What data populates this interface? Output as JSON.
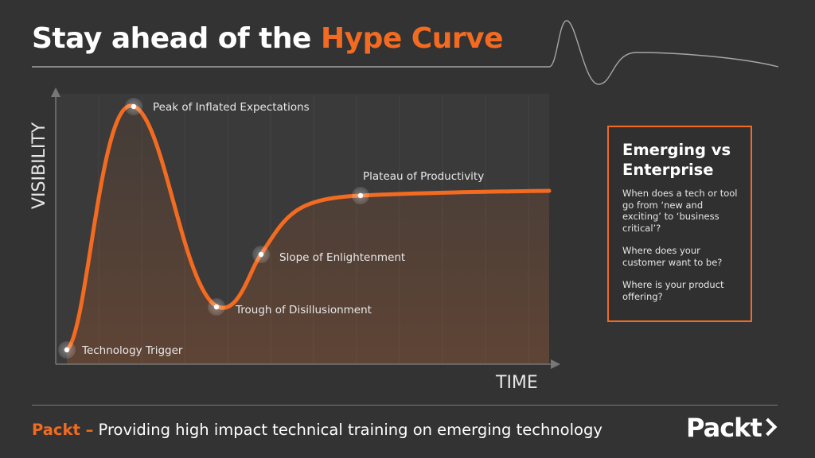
{
  "header": {
    "title_prefix": "Stay ahead of the ",
    "title_accent": "Hype Curve"
  },
  "diagram": {
    "y_axis_label": "VISIBILITY",
    "x_axis_label": "TIME",
    "stages": [
      {
        "label": "Technology Trigger"
      },
      {
        "label": "Peak of Inflated Expectations"
      },
      {
        "label": "Trough of Disillusionment"
      },
      {
        "label": "Slope of Enlightenment"
      },
      {
        "label": "Plateau of Productivity"
      }
    ]
  },
  "info_box": {
    "title_line1": "Emerging vs",
    "title_line2": "Enterprise",
    "paragraphs": [
      "When does a tech or tool go from ‘new and exciting’ to ‘business critical’?",
      "Where does your customer want to be?",
      "Where is your product offering?"
    ]
  },
  "footer": {
    "brand": "Packt –",
    "tagline": " Providing high impact technical training on emerging technology"
  },
  "logo": {
    "text": "Packt"
  },
  "colors": {
    "accent": "#f26b21",
    "background": "#333333",
    "text": "#ffffff"
  }
}
